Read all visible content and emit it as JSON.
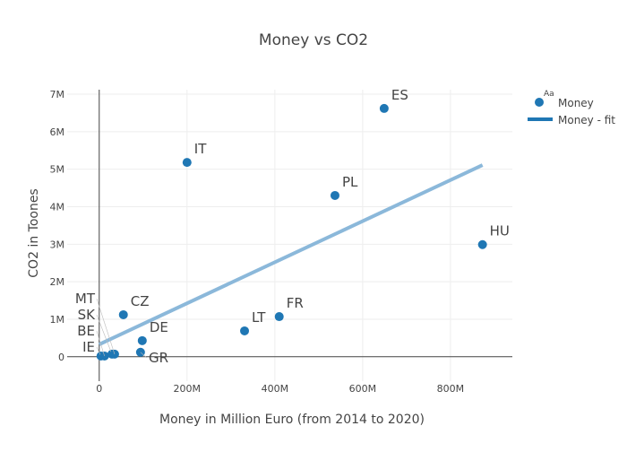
{
  "chart_data": {
    "type": "scatter",
    "title": "Money vs CO2",
    "xlabel": "Money in Million Euro (from 2014 to 2020)",
    "ylabel": "CO2 in Toones",
    "xlim": [
      -73,
      941
    ],
    "ylim": [
      -0.65,
      7.12
    ],
    "xticks": [
      0,
      200,
      400,
      600,
      800
    ],
    "xtick_labels": [
      "0",
      "200M",
      "400M",
      "600M",
      "800M"
    ],
    "yticks": [
      0,
      1,
      2,
      3,
      4,
      5,
      6,
      7
    ],
    "ytick_labels": [
      "0",
      "1M",
      "2M",
      "3M",
      "4M",
      "5M",
      "6M",
      "7M"
    ],
    "grid": true,
    "legend_position": "top-right",
    "series": [
      {
        "name": "Money",
        "mode": "markers+text",
        "color": "#1f77b4",
        "points": [
          {
            "label": "ES",
            "x": 649,
            "y": 6.62
          },
          {
            "label": "IT",
            "x": 200,
            "y": 5.18
          },
          {
            "label": "PL",
            "x": 537,
            "y": 4.3
          },
          {
            "label": "HU",
            "x": 873,
            "y": 2.99
          },
          {
            "label": "CZ",
            "x": 55,
            "y": 1.12
          },
          {
            "label": "FR",
            "x": 410,
            "y": 1.07
          },
          {
            "label": "LT",
            "x": 331,
            "y": 0.69
          },
          {
            "label": "DE",
            "x": 98,
            "y": 0.43
          },
          {
            "label": "GR",
            "x": 94,
            "y": 0.12
          },
          {
            "label": "IE",
            "x": 4,
            "y": 0.02
          },
          {
            "label": "BE",
            "x": 12,
            "y": 0.02
          },
          {
            "label": "SK",
            "x": 29,
            "y": 0.07
          },
          {
            "label": "MT",
            "x": 35,
            "y": 0.07
          }
        ]
      },
      {
        "name": "Money - fit",
        "mode": "lines",
        "color": "#8bb8da",
        "x": [
          0,
          873
        ],
        "y": [
          0.33,
          5.11
        ]
      }
    ],
    "legend_text_marker": "Aa"
  }
}
